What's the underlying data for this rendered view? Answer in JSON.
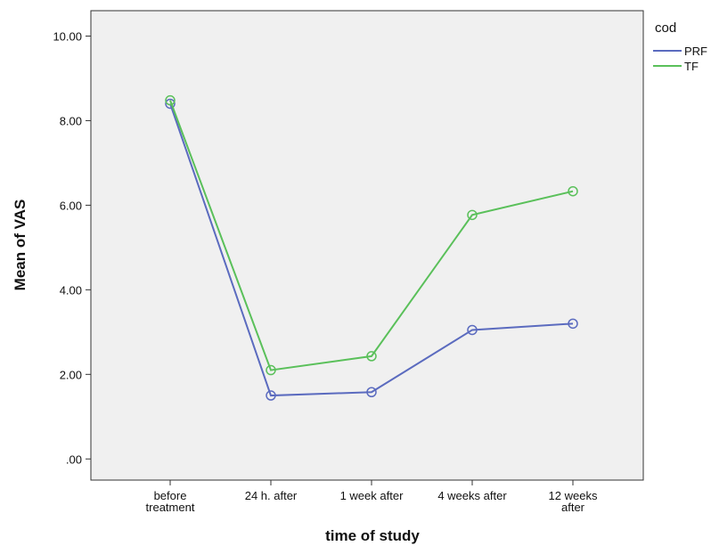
{
  "chart_data": {
    "type": "line",
    "title": "",
    "xlabel": "time of study",
    "ylabel": "Mean of VAS",
    "categories": [
      [
        "before",
        "treatment"
      ],
      [
        "24 h. after"
      ],
      [
        "1 week after"
      ],
      [
        "4 weeks after"
      ],
      [
        "12 weeks",
        "after"
      ]
    ],
    "ylim": [
      -0.5,
      10.6
    ],
    "yticks": [
      0,
      2,
      4,
      6,
      8,
      10
    ],
    "ytick_labels": [
      ".00",
      "2.00",
      "4.00",
      "6.00",
      "8.00",
      "10.00"
    ],
    "legend_title": "cod",
    "legend_position": "right",
    "grid": false,
    "marker": "circle-open",
    "plot_background": "#f0f0f0",
    "series": [
      {
        "name": "PRF",
        "color": "#5b6bbf",
        "values": [
          8.4,
          1.5,
          1.58,
          3.05,
          3.2
        ]
      },
      {
        "name": "TF",
        "color": "#5ac05a",
        "values": [
          8.48,
          2.1,
          2.43,
          5.77,
          6.33
        ]
      }
    ]
  }
}
